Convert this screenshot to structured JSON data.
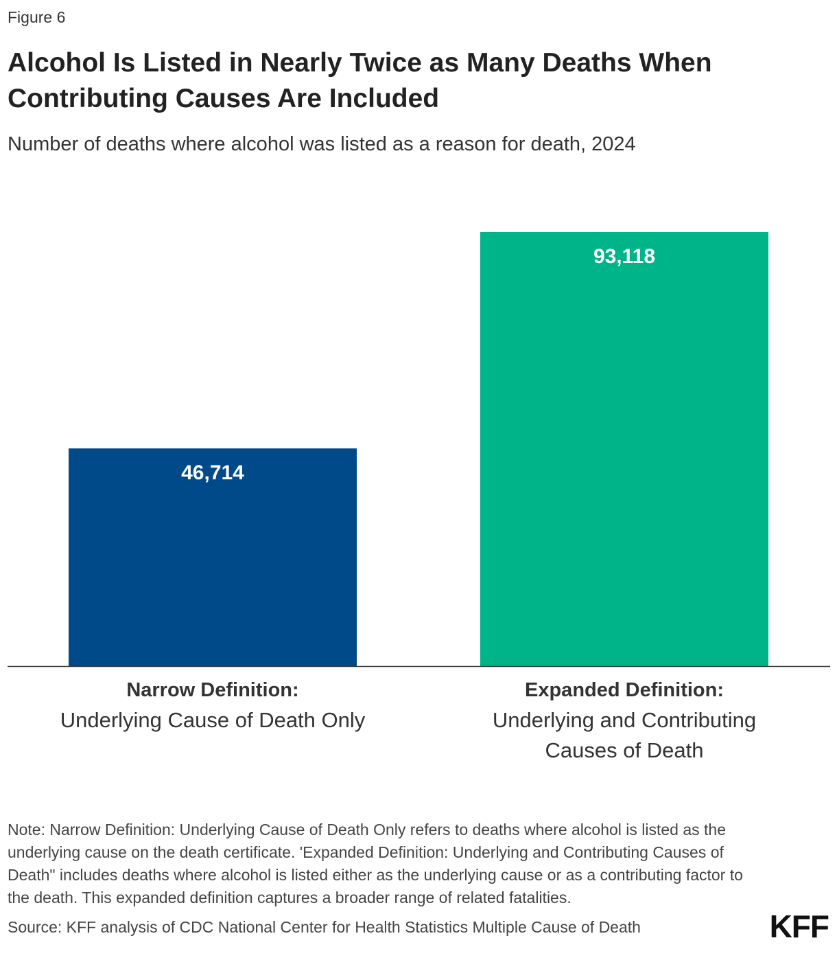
{
  "header": {
    "figure_label": "Figure 6",
    "title": "Alcohol Is Listed in Nearly Twice as Many Deaths When Contributing Causes Are Included",
    "subtitle": "Number of deaths where alcohol was listed as a reason for death, 2024"
  },
  "chart_data": {
    "type": "bar",
    "title": "Alcohol Is Listed in Nearly Twice as Many Deaths When Contributing Causes Are Included",
    "subtitle": "Number of deaths where alcohol was listed as a reason for death, 2024",
    "xlabel": "",
    "ylabel": "",
    "ylim": [
      0,
      93118
    ],
    "grid": false,
    "categories": [
      "Narrow Definition: Underlying Cause of Death Only",
      "Expanded Definition: Underlying and Contributing Causes of Death"
    ],
    "category_titles": [
      "Narrow Definition:",
      "Expanded Definition:"
    ],
    "category_lines": [
      [
        "Underlying Cause of Death Only"
      ],
      [
        "Underlying and Contributing",
        "Causes of Death"
      ]
    ],
    "values": [
      46714,
      93118
    ],
    "value_labels": [
      "46,714",
      "93,118"
    ],
    "colors": [
      "#004A89",
      "#00B48A"
    ]
  },
  "footer": {
    "note": "Note: Narrow Definition: Underlying Cause of Death Only refers to deaths where alcohol is listed as the underlying cause on the death certificate. 'Expanded Definition: Underlying and Contributing Causes of Death\" includes deaths where alcohol is listed either as the underlying cause or as a contributing factor to the death. This expanded definition captures a broader range of related fatalities.",
    "source": "Source: KFF analysis of CDC National Center for Health Statistics Multiple Cause of Death",
    "logo": "KFF"
  }
}
